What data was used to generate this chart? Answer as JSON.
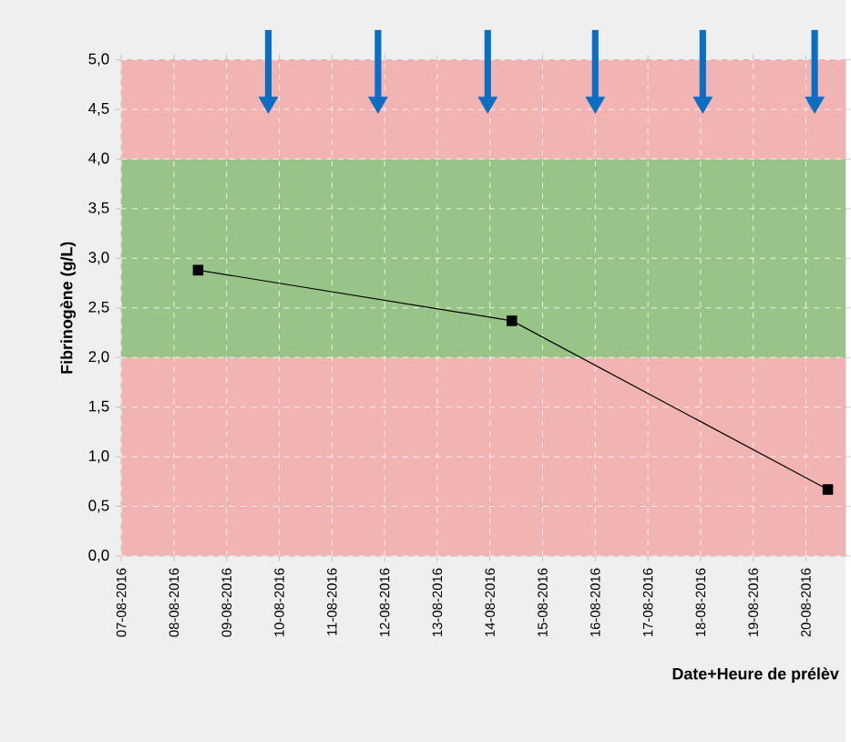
{
  "chart_data": {
    "type": "line",
    "ylabel": "Fibrinogène (g/L)",
    "xlabel": "Date+Heure de prélèv",
    "xlim": [
      "2016-08-07",
      "2016-08-20T18:00"
    ],
    "xticks": [
      {
        "value": "2016-08-07",
        "label": "07-08-2016"
      },
      {
        "value": "2016-08-08",
        "label": "08-08-2016"
      },
      {
        "value": "2016-08-09",
        "label": "09-08-2016"
      },
      {
        "value": "2016-08-10",
        "label": "10-08-2016"
      },
      {
        "value": "2016-08-11",
        "label": "11-08-2016"
      },
      {
        "value": "2016-08-12",
        "label": "12-08-2016"
      },
      {
        "value": "2016-08-13",
        "label": "13-08-2016"
      },
      {
        "value": "2016-08-14",
        "label": "14-08-2016"
      },
      {
        "value": "2016-08-15",
        "label": "15-08-2016"
      },
      {
        "value": "2016-08-16",
        "label": "16-08-2016"
      },
      {
        "value": "2016-08-17",
        "label": "17-08-2016"
      },
      {
        "value": "2016-08-18",
        "label": "18-08-2016"
      },
      {
        "value": "2016-08-19",
        "label": "19-08-2016"
      },
      {
        "value": "2016-08-20",
        "label": "20-08-2016"
      }
    ],
    "ylim": [
      0,
      5
    ],
    "yticks": [
      {
        "value": 0,
        "label": "0,0"
      },
      {
        "value": 0.5,
        "label": "0,5"
      },
      {
        "value": 1,
        "label": "1,0"
      },
      {
        "value": 1.5,
        "label": "1,5"
      },
      {
        "value": 2,
        "label": "2,0"
      },
      {
        "value": 2.5,
        "label": "2,5"
      },
      {
        "value": 3,
        "label": "3,0"
      },
      {
        "value": 3.5,
        "label": "3,5"
      },
      {
        "value": 4,
        "label": "4,0"
      },
      {
        "value": 4.5,
        "label": "4,5"
      },
      {
        "value": 5,
        "label": "5,0"
      }
    ],
    "grid": true,
    "marker": "square",
    "line_style": "solid",
    "bands": [
      {
        "axis": "y",
        "from": 0,
        "to": 2,
        "color": "#f2b3b3"
      },
      {
        "axis": "y",
        "from": 2,
        "to": 4,
        "color": "#98c488"
      },
      {
        "axis": "y",
        "from": 4,
        "to": 5,
        "color": "#f2b3b3"
      }
    ],
    "series": [
      {
        "color": "#000000",
        "x": [
          "2016-08-08T11:00",
          "2016-08-14T10:00",
          "2016-08-20T10:00"
        ],
        "values": [
          2.88,
          2.37,
          0.67
        ]
      },
      {
        "type": "scatter",
        "color": "#0a6fc2",
        "marker": "triangle",
        "x": [
          "2016-08-09T19:00",
          "2016-08-11T21:00",
          "2016-08-13T23:00",
          "2016-08-16T00:00",
          "2016-08-18T01:00",
          "2016-08-20T04:00"
        ],
        "values": [
          4.57,
          4.57,
          4.57,
          4.57,
          4.57,
          4.57
        ]
      }
    ]
  }
}
